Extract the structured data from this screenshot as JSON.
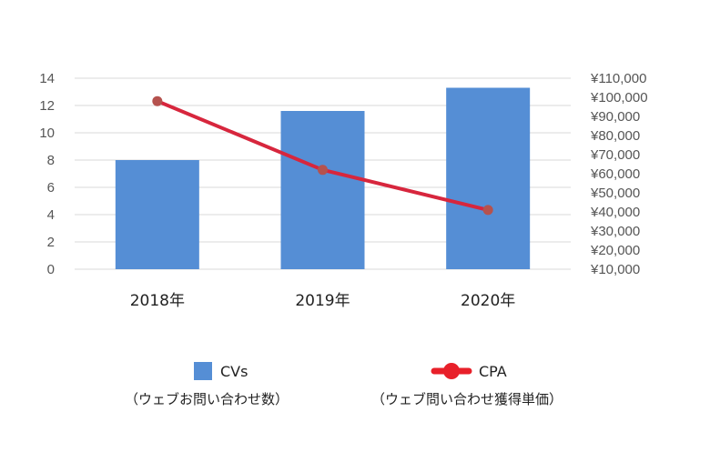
{
  "chart_data": {
    "type": "bar",
    "categories": [
      "2018年",
      "2019年",
      "2020年"
    ],
    "series": [
      {
        "name": "CVs",
        "type": "bar",
        "axis": "left",
        "values": [
          8,
          11.6,
          13.3
        ],
        "color": "#558ed5"
      },
      {
        "name": "CPA",
        "type": "line",
        "axis": "right",
        "values": [
          98000,
          62000,
          41000
        ],
        "color": "#d7263d",
        "marker_color": "#b5524e"
      }
    ],
    "left_axis": {
      "ylim": [
        0,
        14
      ],
      "ticks": [
        "0",
        "2",
        "4",
        "6",
        "8",
        "10",
        "12",
        "14"
      ]
    },
    "right_axis": {
      "ylim": [
        10000,
        110000
      ],
      "ticks": [
        "¥10,000",
        "¥20,000",
        "¥30,000",
        "¥40,000",
        "¥50,000",
        "¥60,000",
        "¥70,000",
        "¥80,000",
        "¥90,000",
        "¥100,000",
        "¥110,000"
      ]
    },
    "grid": true,
    "legend": {
      "placement": "bottom",
      "items": [
        {
          "label": "CVs",
          "sublabel": "（ウェブお問い合わせ数）"
        },
        {
          "label": "CPA",
          "sublabel": "（ウェブ問い合わせ獲得単価）"
        }
      ]
    },
    "title": "",
    "xlabel": "",
    "ylabel": ""
  }
}
